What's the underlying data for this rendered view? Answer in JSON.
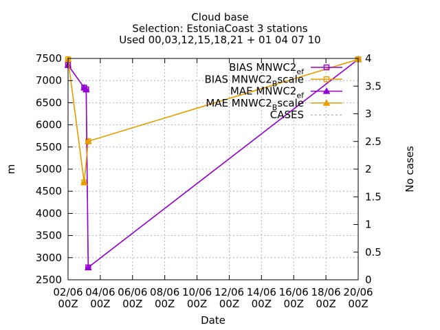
{
  "chart_data": {
    "type": "line",
    "title_lines": [
      "Cloud base",
      "Selection: EstoniaCoast      3 stations",
      "Used 00,03,12,15,18,21 + 01 04 07 10"
    ],
    "xlabel": "Date",
    "ylabel": "m",
    "y2label": "No cases",
    "x_tick_labels": [
      [
        "02/06",
        "00Z"
      ],
      [
        "04/06",
        "00Z"
      ],
      [
        "06/06",
        "00Z"
      ],
      [
        "08/06",
        "00Z"
      ],
      [
        "10/06",
        "00Z"
      ],
      [
        "12/06",
        "00Z"
      ],
      [
        "14/06",
        "00Z"
      ],
      [
        "16/06",
        "00Z"
      ],
      [
        "18/06",
        "00Z"
      ],
      [
        "20/06",
        "00Z"
      ]
    ],
    "xlim": [
      0,
      18
    ],
    "ylim": [
      2500,
      7500
    ],
    "y_ticks": [
      2500,
      3000,
      3500,
      4000,
      4500,
      5000,
      5500,
      6000,
      6500,
      7000,
      7500
    ],
    "y2lim": [
      0,
      4
    ],
    "y2_ticks": [
      "0",
      "0.5",
      "1",
      "1.5",
      "2",
      "2.5",
      "3",
      "3.5",
      "4"
    ],
    "grid": true,
    "legend_position": "top-right",
    "series": [
      {
        "name": "BIAS MNWC2_ef",
        "legend": [
          "BIAS MNWC2",
          "ef"
        ],
        "color": "#9400d3",
        "marker": "square",
        "x": [
          0,
          1,
          1.125,
          1.25,
          18
        ],
        "y": [
          7350,
          6840,
          6800,
          2780,
          7480
        ]
      },
      {
        "name": "BIAS MNWC2_Bscale",
        "legend": [
          "BIAS MNWC2",
          "B",
          "scale"
        ],
        "color": "#e69f00",
        "marker": "square",
        "x": [
          0,
          1,
          1.25,
          18
        ],
        "y": [
          7480,
          4700,
          5630,
          7480
        ]
      },
      {
        "name": "MAE MNWC2_ef",
        "legend": [
          "MAE MNWC2",
          "ef"
        ],
        "color": "#9400d3",
        "marker": "triangle",
        "x": [
          0,
          1,
          1.125,
          1.25,
          18
        ],
        "y": [
          7350,
          6840,
          6800,
          2780,
          7480
        ]
      },
      {
        "name": "MAE MNWC2_Bscale",
        "legend": [
          "MAE MNWC2",
          "B",
          "scale"
        ],
        "color": "#e69f00",
        "marker": "triangle",
        "x": [
          0,
          1,
          1.25,
          18
        ],
        "y": [
          7480,
          4700,
          5630,
          7480
        ]
      },
      {
        "name": "CASES",
        "legend": [
          "CASES"
        ],
        "color": "#a0a0a0",
        "marker": "none",
        "dashed": true,
        "x": [],
        "y": []
      }
    ]
  }
}
